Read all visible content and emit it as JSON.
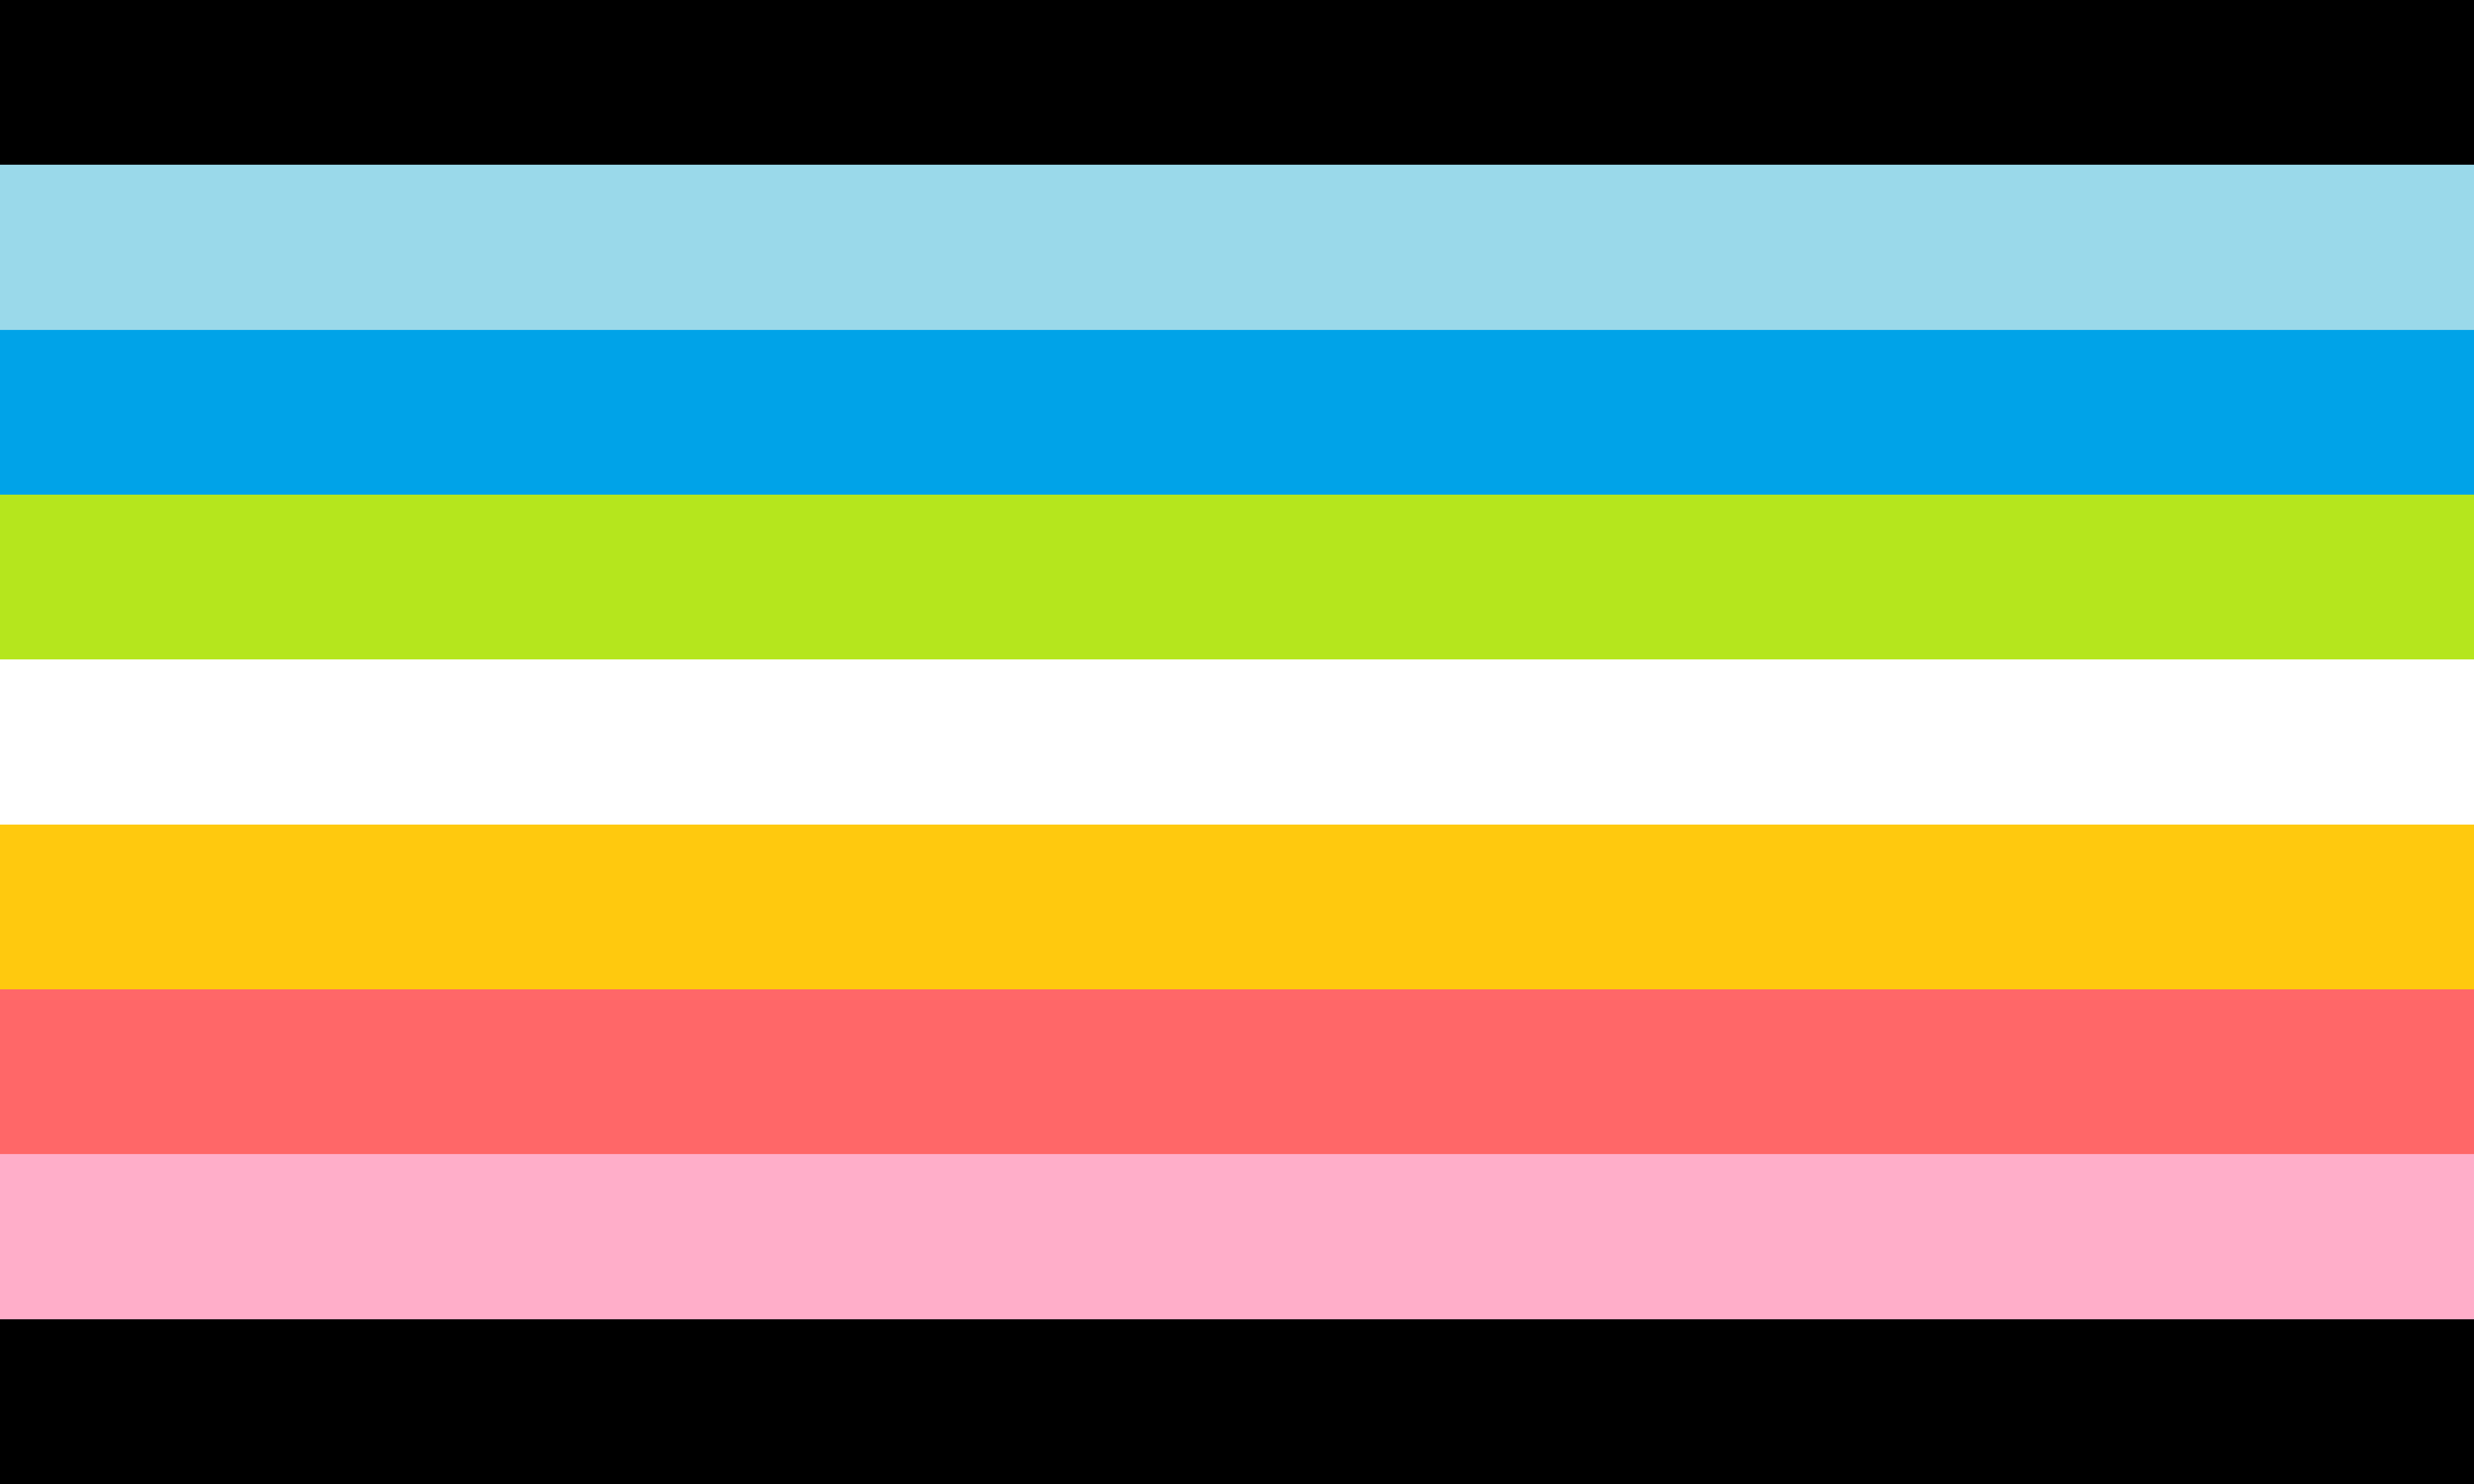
{
  "flag": {
    "stripes": [
      {
        "color": "#000000"
      },
      {
        "color": "#9AD9EA"
      },
      {
        "color": "#00A3E8"
      },
      {
        "color": "#B5E61D"
      },
      {
        "color": "#FFFFFF"
      },
      {
        "color": "#FFC90E"
      },
      {
        "color": "#FF6768"
      },
      {
        "color": "#FFAEC9"
      },
      {
        "color": "#000000"
      }
    ]
  }
}
